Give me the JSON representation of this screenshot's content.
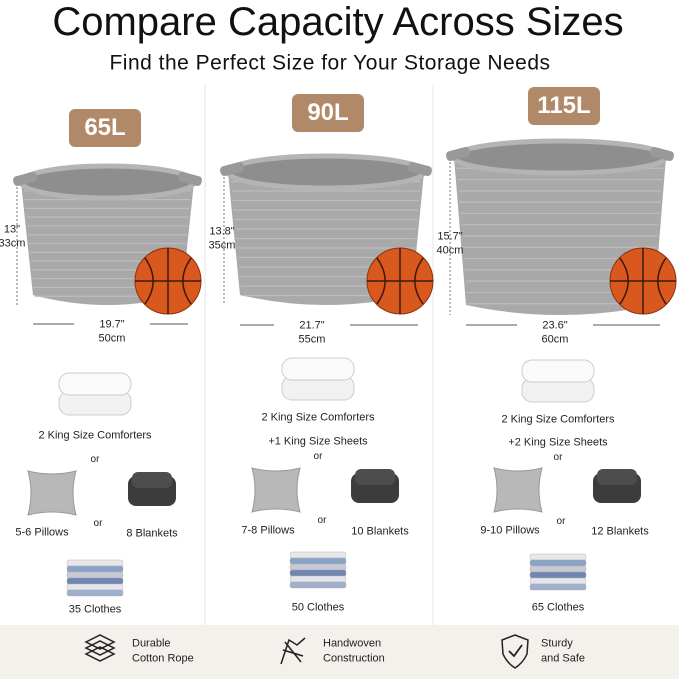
{
  "header": {
    "title": "Compare Capacity Across Sizes",
    "subtitle": "Find the Perfect Size for Your Storage Needs"
  },
  "columns": [
    {
      "capacity": "65L",
      "height_in": "13\"",
      "height_cm": "33cm",
      "width_in": "19.7\"",
      "width_cm": "50cm",
      "comforters": "2 King Size Comforters",
      "ors": [
        "or",
        "or"
      ],
      "pillows": "5-6 Pillows",
      "blankets": "8 Blankets",
      "clothes": "35 Clothes"
    },
    {
      "capacity": "90L",
      "height_in": "13.8\"",
      "height_cm": "35cm",
      "width_in": "21.7\"",
      "width_cm": "55cm",
      "comforters": "2 King Size Comforters",
      "sheets": "+1 King Size Sheets",
      "ors": [
        "or",
        "or"
      ],
      "pillows": "7-8 Pillows",
      "blankets": "10 Blankets",
      "clothes": "50 Clothes"
    },
    {
      "capacity": "115L",
      "height_in": "15.7\"",
      "height_cm": "40cm",
      "width_in": "23.6\"",
      "width_cm": "60cm",
      "comforters": "2 King Size Comforters",
      "sheets": "+2 King Size Sheets",
      "ors": [
        "or",
        "or"
      ],
      "pillows": "9-10 Pillows",
      "blankets": "12 Blankets",
      "clothes": "65 Clothes"
    }
  ],
  "features": [
    {
      "lines": [
        "Durable",
        "Cotton Rope"
      ]
    },
    {
      "lines": [
        "Handwoven",
        "Construction"
      ]
    },
    {
      "lines": [
        "Sturdy",
        "and Safe"
      ]
    }
  ]
}
